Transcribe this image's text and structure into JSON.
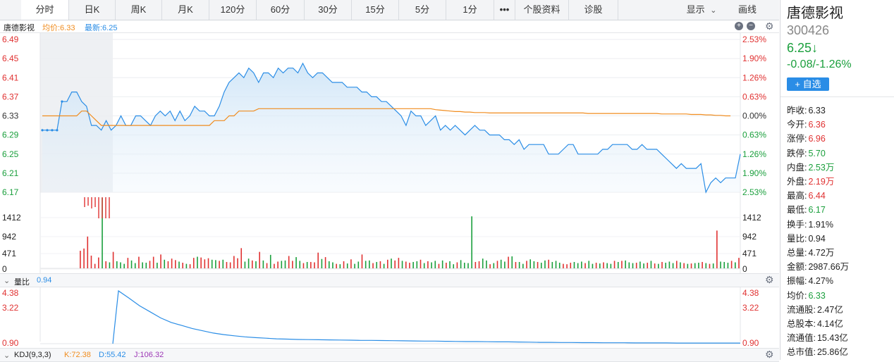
{
  "tabs": [
    {
      "label": "分时",
      "active": true
    },
    {
      "label": "日K"
    },
    {
      "label": "周K"
    },
    {
      "label": "月K"
    },
    {
      "label": "120分"
    },
    {
      "label": "60分"
    },
    {
      "label": "30分"
    },
    {
      "label": "15分"
    },
    {
      "label": "5分"
    },
    {
      "label": "1分"
    },
    {
      "label": "•••"
    },
    {
      "label": "个股资料"
    },
    {
      "label": "诊股"
    }
  ],
  "tab_right": {
    "display": "显示",
    "display_icon": "chevron-down-icon",
    "draw": "画线"
  },
  "chart_header": {
    "name": "唐德影视",
    "avg_label": "均价:6.33",
    "latest_label": "最新:6.25"
  },
  "volume_ratio_header": {
    "label": "量比",
    "value": "0.94"
  },
  "kdj_header": {
    "label": "KDJ(9,3,3)",
    "k": "K:72.38",
    "d": "D:55.42",
    "j": "J:106.32"
  },
  "colors": {
    "up": "#e03131",
    "down": "#1a9f3c",
    "price_line": "#2a8de6",
    "avg_line": "#f08c1e",
    "accent": "#2a8de6"
  },
  "chart_data": [
    {
      "type": "line",
      "title": "分时",
      "y_ticks_left": [
        "6.49",
        "6.45",
        "6.41",
        "6.37",
        "6.33",
        "6.29",
        "6.25",
        "6.21",
        "6.17"
      ],
      "y_ticks_right": [
        "2.53%",
        "1.90%",
        "1.26%",
        "0.63%",
        "0.00%",
        "0.63%",
        "1.26%",
        "1.90%",
        "2.53%"
      ],
      "ylim": [
        6.17,
        6.49
      ],
      "prev_close": 6.33,
      "series": [
        {
          "name": "price",
          "values": [
            6.3,
            6.3,
            6.3,
            6.3,
            6.36,
            6.36,
            6.38,
            6.38,
            6.36,
            6.35,
            6.31,
            6.31,
            6.3,
            6.32,
            6.3,
            6.31,
            6.33,
            6.31,
            6.31,
            6.33,
            6.33,
            6.32,
            6.31,
            6.33,
            6.34,
            6.33,
            6.34,
            6.32,
            6.34,
            6.32,
            6.33,
            6.35,
            6.34,
            6.34,
            6.33,
            6.33,
            6.35,
            6.38,
            6.4,
            6.41,
            6.42,
            6.41,
            6.43,
            6.42,
            6.4,
            6.42,
            6.42,
            6.41,
            6.43,
            6.42,
            6.43,
            6.43,
            6.42,
            6.44,
            6.42,
            6.41,
            6.42,
            6.42,
            6.41,
            6.4,
            6.4,
            6.4,
            6.39,
            6.39,
            6.39,
            6.38,
            6.38,
            6.37,
            6.37,
            6.36,
            6.36,
            6.35,
            6.34,
            6.33,
            6.31,
            6.34,
            6.33,
            6.33,
            6.31,
            6.32,
            6.33,
            6.3,
            6.31,
            6.3,
            6.31,
            6.3,
            6.29,
            6.3,
            6.31,
            6.3,
            6.3,
            6.29,
            6.29,
            6.29,
            6.28,
            6.28,
            6.27,
            6.28,
            6.26,
            6.27,
            6.27,
            6.27,
            6.27,
            6.25,
            6.25,
            6.25,
            6.26,
            6.27,
            6.27,
            6.25,
            6.25,
            6.25,
            6.25,
            6.25,
            6.26,
            6.26,
            6.27,
            6.27,
            6.27,
            6.27,
            6.26,
            6.26,
            6.27,
            6.26,
            6.26,
            6.26,
            6.25,
            6.24,
            6.23,
            6.22,
            6.23,
            6.22,
            6.22,
            6.22,
            6.23,
            6.17,
            6.19,
            6.2,
            6.19,
            6.2,
            6.2,
            6.2,
            6.25
          ]
        },
        {
          "name": "avg",
          "values": [
            6.33,
            6.33,
            6.33,
            6.33,
            6.33,
            6.33,
            6.33,
            6.33,
            6.34,
            6.34,
            6.33,
            6.32,
            6.31,
            6.31,
            6.31,
            6.31,
            6.31,
            6.31,
            6.31,
            6.31,
            6.31,
            6.31,
            6.31,
            6.31,
            6.31,
            6.31,
            6.31,
            6.31,
            6.31,
            6.31,
            6.31,
            6.31,
            6.31,
            6.31,
            6.31,
            6.32,
            6.32,
            6.32,
            6.33,
            6.33,
            6.34,
            6.34,
            6.34,
            6.34,
            6.345,
            6.345,
            6.345,
            6.345,
            6.345,
            6.345,
            6.345,
            6.345,
            6.345,
            6.345,
            6.345,
            6.345,
            6.345,
            6.345,
            6.345,
            6.345,
            6.345,
            6.345,
            6.345,
            6.345,
            6.345,
            6.345,
            6.345,
            6.345,
            6.345,
            6.345,
            6.345,
            6.345,
            6.345,
            6.345,
            6.345,
            6.345,
            6.345,
            6.345,
            6.345,
            6.345,
            6.343,
            6.342,
            6.341,
            6.34,
            6.339,
            6.339,
            6.338,
            6.338,
            6.337,
            6.337,
            6.337,
            6.336,
            6.336,
            6.336,
            6.336,
            6.336,
            6.336,
            6.336,
            6.336,
            6.336,
            6.336,
            6.336,
            6.336,
            6.336,
            6.336,
            6.336,
            6.336,
            6.336,
            6.336,
            6.336,
            6.336,
            6.335,
            6.335,
            6.335,
            6.335,
            6.335,
            6.335,
            6.335,
            6.335,
            6.335,
            6.335,
            6.335,
            6.335,
            6.335,
            6.335,
            6.335,
            6.334,
            6.334,
            6.334,
            6.334,
            6.334,
            6.334,
            6.333,
            6.333,
            6.333,
            6.332,
            6.332,
            6.331,
            6.331,
            6.33,
            6.33
          ]
        }
      ]
    },
    {
      "type": "bar",
      "title": "成交量",
      "y_ticks": [
        "1412",
        "942",
        "471",
        "0"
      ],
      "ylim": [
        0,
        1883
      ],
      "values": [
        0,
        0,
        0,
        0,
        0,
        0,
        0,
        0,
        0,
        0,
        470,
        530,
        850,
        340,
        120,
        290,
        1883,
        190,
        160,
        440,
        190,
        160,
        120,
        280,
        210,
        140,
        310,
        160,
        150,
        200,
        310,
        150,
        370,
        230,
        190,
        260,
        220,
        180,
        150,
        120,
        110,
        280,
        310,
        290,
        240,
        270,
        230,
        220,
        200,
        230,
        170,
        160,
        330,
        270,
        540,
        180,
        260,
        210,
        190,
        440,
        210,
        140,
        360,
        120,
        180,
        200,
        210,
        330,
        200,
        300,
        200,
        140,
        170,
        170,
        160,
        420,
        250,
        300,
        190,
        160,
        120,
        110,
        190,
        130,
        240,
        120,
        180,
        370,
        200,
        210,
        140,
        170,
        190,
        120,
        230,
        260,
        210,
        280,
        200,
        180,
        150,
        170,
        190,
        230,
        140,
        190,
        160,
        200,
        120,
        210,
        150,
        190,
        110,
        160,
        220,
        150,
        140,
        1390,
        170,
        190,
        260,
        210,
        110,
        140,
        200,
        230,
        180,
        310,
        320,
        170,
        170,
        120,
        200,
        240,
        190,
        170,
        150,
        210,
        230,
        170,
        200,
        150,
        120,
        110,
        150,
        170,
        140,
        180,
        140,
        200,
        120,
        150,
        130,
        160,
        140,
        120,
        200,
        170,
        200,
        210,
        160,
        140,
        150,
        180,
        130,
        150,
        200,
        130,
        120,
        170,
        150,
        180,
        140,
        200,
        160,
        140,
        120,
        130,
        140,
        150,
        170,
        140,
        120,
        130,
        1010,
        180,
        170,
        150,
        200,
        160,
        280
      ],
      "colors": [
        "up",
        "up",
        "up",
        "up",
        "up",
        "up",
        "up",
        "up",
        "up",
        "up",
        "up",
        "up",
        "up",
        "up",
        "up",
        "up",
        "down",
        "up",
        "down",
        "up",
        "down",
        "down",
        "down",
        "up",
        "down",
        "down",
        "up",
        "down",
        "down",
        "up",
        "up",
        "down",
        "up",
        "down",
        "up",
        "up",
        "up",
        "down",
        "up",
        "down",
        "up",
        "up",
        "down",
        "up",
        "up",
        "up",
        "down",
        "down",
        "up",
        "down",
        "up",
        "up",
        "up",
        "up",
        "up",
        "down",
        "down",
        "up",
        "down",
        "up",
        "down",
        "up",
        "down",
        "up",
        "up",
        "down",
        "down",
        "up",
        "up",
        "down",
        "down",
        "up",
        "down",
        "up",
        "up",
        "up",
        "down",
        "up",
        "down",
        "down",
        "up",
        "down",
        "up",
        "down",
        "up",
        "down",
        "down",
        "up",
        "down",
        "down",
        "up",
        "down",
        "up",
        "down",
        "up",
        "down",
        "up",
        "up",
        "down",
        "up",
        "up",
        "down",
        "down",
        "up",
        "down",
        "up",
        "down",
        "down",
        "up",
        "down",
        "up",
        "down",
        "down",
        "up",
        "down",
        "down",
        "down",
        "down",
        "up",
        "up",
        "down",
        "down",
        "up",
        "down",
        "up",
        "down",
        "down",
        "up",
        "down",
        "up",
        "down",
        "down",
        "up",
        "down",
        "down",
        "up",
        "down",
        "down",
        "up",
        "down",
        "down",
        "down",
        "up",
        "up",
        "up",
        "down",
        "down",
        "down",
        "up",
        "down",
        "down",
        "up",
        "down",
        "up",
        "down",
        "down",
        "up",
        "down",
        "up",
        "down",
        "down",
        "down",
        "up",
        "down",
        "down",
        "up",
        "down",
        "up",
        "down",
        "up",
        "down",
        "down",
        "down",
        "up",
        "down",
        "up",
        "down",
        "up",
        "down",
        "down",
        "up",
        "down",
        "up",
        "down",
        "up",
        "down",
        "down",
        "down",
        "up",
        "down",
        "up",
        "up"
      ]
    },
    {
      "type": "line",
      "title": "量比",
      "y_ticks": [
        "4.38",
        "3.22",
        "0.90"
      ],
      "ylim": [
        0.9,
        4.38
      ],
      "values": [
        4.38,
        3.9,
        3.4,
        3.0,
        2.6,
        2.3,
        2.1,
        1.9,
        1.75,
        1.6,
        1.5,
        1.42,
        1.35,
        1.3,
        1.26,
        1.22,
        1.2,
        1.18,
        1.17,
        1.16,
        1.15,
        1.14,
        1.13,
        1.12,
        1.12,
        1.11,
        1.1,
        1.09,
        1.08,
        1.07,
        1.07,
        1.06,
        1.05,
        1.04,
        1.04,
        1.03,
        1.02,
        1.02,
        1.01,
        1.0,
        0.99,
        0.99,
        0.98,
        0.98,
        0.97,
        0.97,
        0.96,
        0.96,
        0.96,
        0.95,
        0.95,
        0.95,
        0.95,
        0.94,
        0.94,
        0.94,
        0.94,
        0.94,
        0.94,
        0.94
      ]
    }
  ],
  "panel": {
    "name": "唐德影视",
    "code": "300426",
    "price": "6.25↓",
    "change": "-0.08/-1.26%",
    "add_button": "+ 自选",
    "stats": [
      {
        "label": "昨收:",
        "value": "6.33",
        "color": "neutral"
      },
      {
        "label": "今开:",
        "value": "6.36",
        "color": "up"
      },
      {
        "label": "涨停:",
        "value": "6.96",
        "color": "up"
      },
      {
        "label": "跌停:",
        "value": "5.70",
        "color": "down"
      },
      {
        "label": "内盘:",
        "value": "2.53万",
        "color": "down"
      },
      {
        "label": "外盘:",
        "value": "2.19万",
        "color": "up"
      },
      {
        "label": "最高:",
        "value": "6.44",
        "color": "up"
      },
      {
        "label": "最低:",
        "value": "6.17",
        "color": "down"
      },
      {
        "label": "换手:",
        "value": "1.91%",
        "color": "neutral"
      },
      {
        "label": "量比:",
        "value": "0.94",
        "color": "neutral"
      },
      {
        "label": "总量:",
        "value": "4.72万",
        "color": "neutral"
      },
      {
        "label": "金额:",
        "value": "2987.66万",
        "color": "neutral"
      },
      {
        "label": "振幅:",
        "value": "4.27%",
        "color": "neutral"
      },
      {
        "label": "均价:",
        "value": "6.33",
        "color": "down"
      },
      {
        "label": "流通股:",
        "value": "2.47亿",
        "color": "neutral"
      },
      {
        "label": "总股本:",
        "value": "4.14亿",
        "color": "neutral"
      },
      {
        "label": "流通值:",
        "value": "15.43亿",
        "color": "neutral"
      },
      {
        "label": "总市值:",
        "value": "25.86亿",
        "color": "neutral"
      }
    ]
  }
}
